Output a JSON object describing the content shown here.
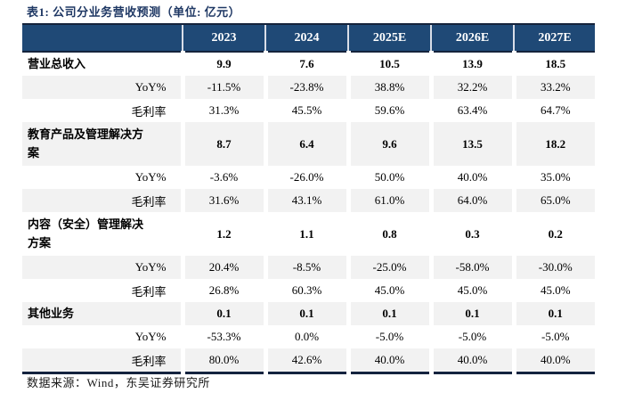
{
  "title": "表1: 公司分业务营收预测（单位: 亿元）",
  "footer": "数据来源：Wind，东吴证券研究所",
  "colors": {
    "header_background": "#1f4976",
    "header_text": "#ffffff",
    "shaded_row": "#f2f2f2",
    "title_text": "#1f3864",
    "table_border": "#15233c"
  },
  "table": {
    "columns": [
      "",
      "2023",
      "2024",
      "2025E",
      "2026E",
      "2027E"
    ],
    "rows": [
      {
        "label": "营业总收入",
        "type": "section",
        "shaded": false,
        "tall": false,
        "values": [
          "9.9",
          "7.6",
          "10.5",
          "13.9",
          "18.5"
        ]
      },
      {
        "label": "YoY%",
        "type": "sub",
        "shaded": true,
        "tall": false,
        "values": [
          "-11.5%",
          "-23.8%",
          "38.8%",
          "32.2%",
          "33.2%"
        ]
      },
      {
        "label": "毛利率",
        "type": "sub",
        "shaded": false,
        "tall": false,
        "values": [
          "31.3%",
          "45.5%",
          "59.6%",
          "63.4%",
          "64.7%"
        ]
      },
      {
        "label": "教育产品及管理解决方案",
        "type": "section",
        "shaded": true,
        "tall": true,
        "values": [
          "8.7",
          "6.4",
          "9.6",
          "13.5",
          "18.2"
        ]
      },
      {
        "label": "YoY%",
        "type": "sub",
        "shaded": false,
        "tall": false,
        "values": [
          "-3.6%",
          "-26.0%",
          "50.0%",
          "40.0%",
          "35.0%"
        ]
      },
      {
        "label": "毛利率",
        "type": "sub",
        "shaded": true,
        "tall": false,
        "values": [
          "31.6%",
          "43.1%",
          "61.0%",
          "64.0%",
          "65.0%"
        ]
      },
      {
        "label": "内容（安全）管理解决方案",
        "type": "section",
        "shaded": false,
        "tall": true,
        "values": [
          "1.2",
          "1.1",
          "0.8",
          "0.3",
          "0.2"
        ]
      },
      {
        "label": "YoY%",
        "type": "sub",
        "shaded": true,
        "tall": false,
        "values": [
          "20.4%",
          "-8.5%",
          "-25.0%",
          "-58.0%",
          "-30.0%"
        ]
      },
      {
        "label": "毛利率",
        "type": "sub",
        "shaded": false,
        "tall": false,
        "values": [
          "26.8%",
          "60.3%",
          "45.0%",
          "45.0%",
          "45.0%"
        ]
      },
      {
        "label": "其他业务",
        "type": "section",
        "shaded": true,
        "tall": false,
        "values": [
          "0.1",
          "0.1",
          "0.1",
          "0.1",
          "0.1"
        ]
      },
      {
        "label": "YoY%",
        "type": "sub",
        "shaded": false,
        "tall": false,
        "values": [
          "-53.3%",
          "0.0%",
          "-5.0%",
          "-5.0%",
          "-5.0%"
        ]
      },
      {
        "label": "毛利率",
        "type": "sub",
        "shaded": true,
        "tall": false,
        "values": [
          "80.0%",
          "42.6%",
          "40.0%",
          "40.0%",
          "40.0%"
        ]
      }
    ]
  }
}
